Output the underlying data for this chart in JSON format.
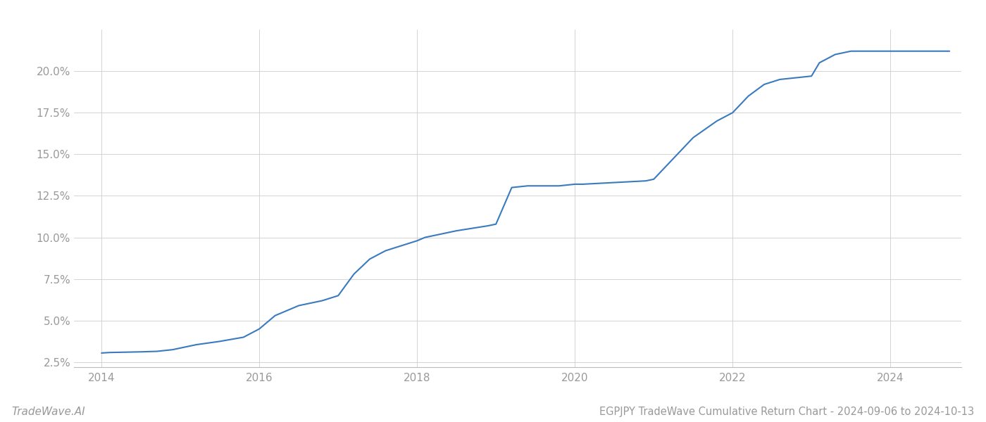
{
  "title": "EGPJPY TradeWave Cumulative Return Chart - 2024-09-06 to 2024-10-13",
  "watermark": "TradeWave.AI",
  "line_color": "#3a7abf",
  "background_color": "#ffffff",
  "grid_color": "#cccccc",
  "x_values": [
    2014.0,
    2014.1,
    2014.3,
    2014.5,
    2014.7,
    2014.9,
    2015.0,
    2015.2,
    2015.5,
    2015.8,
    2016.0,
    2016.2,
    2016.5,
    2016.8,
    2017.0,
    2017.2,
    2017.4,
    2017.6,
    2017.8,
    2018.0,
    2018.1,
    2018.3,
    2018.5,
    2018.7,
    2018.9,
    2019.0,
    2019.2,
    2019.4,
    2019.6,
    2019.8,
    2020.0,
    2020.05,
    2020.1,
    2020.3,
    2020.5,
    2020.7,
    2020.9,
    2021.0,
    2021.2,
    2021.5,
    2021.8,
    2022.0,
    2022.2,
    2022.4,
    2022.6,
    2022.8,
    2023.0,
    2023.1,
    2023.3,
    2023.5,
    2023.7,
    2023.9,
    2024.0,
    2024.2,
    2024.5,
    2024.75
  ],
  "y_values": [
    3.05,
    3.08,
    3.1,
    3.12,
    3.15,
    3.25,
    3.35,
    3.55,
    3.75,
    4.0,
    4.5,
    5.3,
    5.9,
    6.2,
    6.5,
    7.8,
    8.7,
    9.2,
    9.5,
    9.8,
    10.0,
    10.2,
    10.4,
    10.55,
    10.7,
    10.8,
    13.0,
    13.1,
    13.1,
    13.1,
    13.2,
    13.2,
    13.2,
    13.25,
    13.3,
    13.35,
    13.4,
    13.5,
    14.5,
    16.0,
    17.0,
    17.5,
    18.5,
    19.2,
    19.5,
    19.6,
    19.7,
    20.5,
    21.0,
    21.2,
    21.2,
    21.2,
    21.2,
    21.2,
    21.2,
    21.2
  ],
  "xlim": [
    2013.65,
    2024.9
  ],
  "ylim": [
    2.2,
    22.5
  ],
  "yticks": [
    2.5,
    5.0,
    7.5,
    10.0,
    12.5,
    15.0,
    17.5,
    20.0
  ],
  "xticks": [
    2014,
    2016,
    2018,
    2020,
    2022,
    2024
  ],
  "line_width": 1.5,
  "tick_label_color": "#999999",
  "tick_label_fontsize": 11,
  "title_fontsize": 10.5,
  "watermark_fontsize": 11
}
